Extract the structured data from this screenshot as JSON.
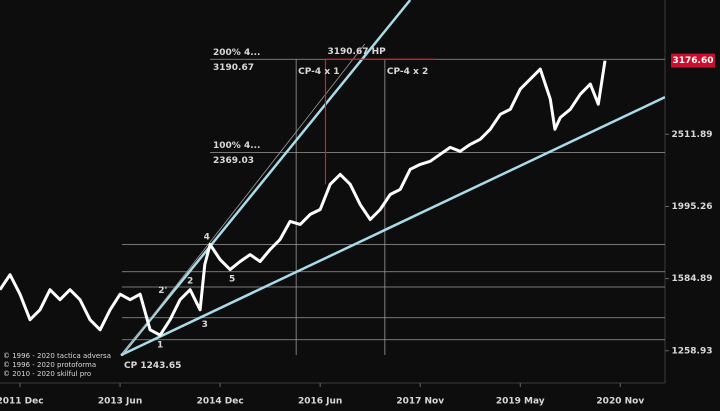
{
  "chart_data": {
    "type": "line",
    "log_scale": true,
    "xlim": [
      2011.62,
      2021.59
    ],
    "ylim": [
      1136,
      3855
    ],
    "xticks": [
      {
        "value": 2011.92,
        "label": "2011 Dec"
      },
      {
        "value": 2013.42,
        "label": "2013 Jun"
      },
      {
        "value": 2014.92,
        "label": "2014 Dec"
      },
      {
        "value": 2016.42,
        "label": "2016 Jun"
      },
      {
        "value": 2017.92,
        "label": "2017 Nov"
      },
      {
        "value": 2019.42,
        "label": "2019 May"
      },
      {
        "value": 2020.92,
        "label": "2020 Nov"
      }
    ],
    "yticks": [
      1258.93,
      1584.89,
      1995.26,
      2511.89
    ],
    "last_price": {
      "value": 3176.6,
      "label": "3176.60"
    },
    "series": [
      {
        "color": "#ffffff",
        "x": [
          2011.62,
          2011.77,
          2011.92,
          2012.07,
          2012.22,
          2012.37,
          2012.52,
          2012.67,
          2012.82,
          2012.97,
          2013.12,
          2013.27,
          2013.42,
          2013.57,
          2013.72,
          2013.87,
          2014.02,
          2014.17,
          2014.32,
          2014.47,
          2014.62,
          2014.69,
          2014.77,
          2014.92,
          2015.07,
          2015.22,
          2015.37,
          2015.52,
          2015.67,
          2015.82,
          2015.97,
          2016.12,
          2016.27,
          2016.42,
          2016.57,
          2016.72,
          2016.87,
          2017.02,
          2017.17,
          2017.32,
          2017.47,
          2017.62,
          2017.77,
          2017.92,
          2018.07,
          2018.22,
          2018.37,
          2018.52,
          2018.67,
          2018.82,
          2018.97,
          2019.12,
          2019.27,
          2019.42,
          2019.57,
          2019.72,
          2019.87,
          2019.94,
          2020.02,
          2020.17,
          2020.32,
          2020.47,
          2020.59,
          2020.69
        ],
        "values": [
          1530,
          1605,
          1508,
          1390,
          1435,
          1530,
          1482,
          1530,
          1482,
          1390,
          1346,
          1435,
          1508,
          1482,
          1508,
          1346,
          1323,
          1390,
          1482,
          1530,
          1435,
          1658,
          1767,
          1684,
          1631,
          1674,
          1711,
          1674,
          1739,
          1796,
          1902,
          1884,
          1945,
          1976,
          2141,
          2210,
          2141,
          2007,
          1914,
          1976,
          2073,
          2107,
          2246,
          2282,
          2304,
          2356,
          2409,
          2379,
          2432,
          2472,
          2552,
          2677,
          2720,
          2901,
          2995,
          3092,
          2809,
          2552,
          2650,
          2720,
          2854,
          2948,
          2765,
          3176.6
        ]
      }
    ],
    "labeled_levels": [
      {
        "value": 3190.67,
        "label": "3190.67",
        "tag": "200%  4..."
      },
      {
        "value": 2369.03,
        "label": "2369.03",
        "tag": "100%  4..."
      }
    ],
    "levels": [
      1767,
      1620,
      1543,
      1399,
      1304
    ],
    "high_point": {
      "value": 3190.67,
      "label": "3190.67  HP",
      "x": 2016.5,
      "x_end": 2018.14,
      "low": 2141
    },
    "vlines": [
      {
        "x": 2016.06,
        "label": "CP-4 x 1"
      },
      {
        "x": 2017.39,
        "label": "CP-4 x 2"
      }
    ],
    "cp": {
      "x": 2013.45,
      "value": 1243.65,
      "label": "CP 1243.65"
    },
    "trendlines": [
      {
        "x": [
          2013.45,
          2017.77
        ],
        "values": [
          1243.65,
          3855
        ],
        "color": "#a9dbe9"
      },
      {
        "x": [
          2013.45,
          2021.59
        ],
        "values": [
          1243.65,
          2828
        ],
        "color": "#a9dbe9"
      },
      {
        "x": [
          2013.45,
          2017.09
        ],
        "values": [
          1243.65,
          3350
        ],
        "color": "#9a9a9a"
      }
    ],
    "waves": [
      {
        "label": "1",
        "x": 2014.02,
        "value": 1283
      },
      {
        "label": "2'",
        "x": 2014.06,
        "value": 1527
      },
      {
        "label": "2",
        "x": 2014.47,
        "value": 1574
      },
      {
        "label": "3",
        "x": 2014.69,
        "value": 1370
      },
      {
        "label": "4",
        "x": 2014.72,
        "value": 1809
      },
      {
        "label": "5",
        "x": 2015.1,
        "value": 1584
      }
    ],
    "copyright": [
      "© 1996 - 2020 tactica adversa",
      "© 1996 - 2020 protoforma",
      "© 2010 - 2020 skilful pro"
    ]
  }
}
